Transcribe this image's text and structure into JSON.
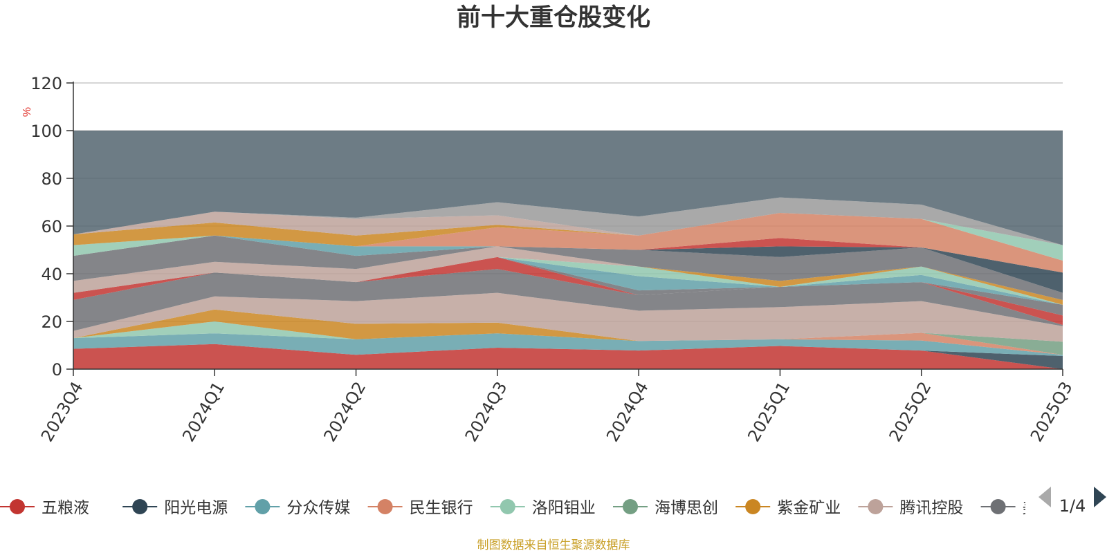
{
  "colors": {
    "axis": "#333333",
    "grid": "#c8c8c8",
    "unit": "#e0312a",
    "source": "#c9a028",
    "pager_active": "#2f4554",
    "pager_inactive": "#aaaaaa"
  },
  "legend": {
    "page_indicator": "1/4",
    "prev_icon": "triangle-left-icon",
    "next_icon": "triangle-right-icon"
  },
  "source_note": "制图数据来自恒生聚源数据库",
  "chart_data": {
    "type": "area",
    "stacked": true,
    "title": "前十大重仓股变化",
    "ylabel": "%",
    "xlabel": "",
    "ylim": [
      0,
      120
    ],
    "yticks": [
      0,
      20,
      40,
      60,
      80,
      100,
      120
    ],
    "grid": true,
    "legend_position": "bottom",
    "categories": [
      "2023Q4",
      "2024Q1",
      "2024Q2",
      "2024Q3",
      "2024Q4",
      "2025Q1",
      "2025Q2",
      "2025Q3"
    ],
    "series": [
      {
        "name": "五粮液",
        "color": "#c23531",
        "values": [
          8.5,
          10.5,
          6.0,
          9.0,
          7.8,
          9.7,
          7.8,
          0
        ]
      },
      {
        "name": "阳光电源",
        "color": "#2f4554",
        "values": [
          0,
          0,
          0,
          0,
          0,
          0,
          0,
          5.5
        ]
      },
      {
        "name": "分众传媒",
        "color": "#61a0a8",
        "values": [
          4.5,
          4.5,
          6.5,
          6.0,
          4.0,
          2.8,
          4.2,
          0.5
        ]
      },
      {
        "name": "民生银行",
        "color": "#d48265",
        "values": [
          0,
          0,
          0,
          0,
          0,
          0,
          3.2,
          0
        ]
      },
      {
        "name": "洛阳钼业",
        "color": "#91c7ae",
        "values": [
          0,
          5.0,
          0,
          0,
          0,
          0,
          0,
          0
        ]
      },
      {
        "name": "海博思创",
        "color": "#749f83",
        "values": [
          0,
          0,
          0,
          0,
          0,
          0,
          0,
          5.5
        ]
      },
      {
        "name": "紫金矿业",
        "color": "#ca8622",
        "values": [
          0,
          5.0,
          6.5,
          4.5,
          0,
          0,
          0,
          0
        ]
      },
      {
        "name": "腾讯控股",
        "color": "#bda29a",
        "values": [
          3.0,
          5.5,
          9.5,
          12.5,
          12.5,
          13.5,
          13.0,
          6.5
        ]
      }
    ],
    "visible_stack_boundaries": [
      [
        8.5,
        10.5,
        6.0,
        9.0,
        7.8,
        9.7,
        7.8,
        0
      ],
      [
        8.5,
        10.5,
        6.0,
        9.0,
        7.8,
        9.7,
        7.8,
        5.5
      ],
      [
        13.0,
        15.0,
        12.5,
        15.0,
        11.8,
        12.5,
        12.0,
        6.0
      ],
      [
        13.0,
        15.0,
        12.5,
        15.0,
        11.8,
        12.5,
        15.2,
        6.0
      ],
      [
        13.0,
        20.0,
        12.5,
        15.0,
        11.8,
        12.5,
        15.2,
        6.0
      ],
      [
        13.0,
        20.0,
        12.5,
        15.0,
        11.8,
        12.5,
        15.2,
        11.5
      ],
      [
        13.0,
        25.0,
        19.0,
        19.5,
        11.8,
        12.5,
        15.2,
        11.5
      ],
      [
        16.0,
        30.5,
        28.5,
        32.0,
        24.5,
        26.0,
        28.5,
        18.0
      ],
      [
        29.0,
        40.5,
        36.5,
        42.0,
        31.0,
        34.5,
        36.5,
        18.5
      ],
      [
        32.0,
        40.5,
        36.5,
        47.0,
        31.0,
        34.5,
        36.5,
        22.5
      ],
      [
        32.0,
        40.5,
        36.5,
        47.0,
        33.0,
        34.5,
        36.5,
        27.0
      ],
      [
        32.0,
        40.5,
        36.5,
        47.0,
        39.0,
        34.5,
        39.5,
        27.0
      ],
      [
        32.0,
        40.5,
        36.5,
        47.0,
        43.0,
        34.5,
        43.0,
        27.0
      ],
      [
        32.0,
        40.5,
        36.5,
        47.0,
        43.0,
        37.0,
        43.0,
        29.0
      ],
      [
        37.0,
        45.0,
        42.0,
        51.5,
        43.0,
        37.0,
        43.0,
        29.0
      ],
      [
        47.5,
        56.0,
        47.5,
        51.5,
        50.0,
        47.0,
        51.0,
        32.0
      ],
      [
        47.5,
        56.0,
        47.5,
        51.5,
        50.0,
        51.5,
        51.0,
        40.5
      ],
      [
        47.5,
        56.0,
        47.5,
        51.5,
        50.0,
        55.0,
        51.0,
        40.5
      ],
      [
        47.5,
        56.0,
        51.5,
        51.5,
        50.0,
        55.0,
        51.0,
        40.5
      ],
      [
        47.5,
        56.0,
        51.5,
        59.5,
        56.0,
        65.5,
        63.0,
        45.5
      ],
      [
        52.0,
        56.0,
        51.5,
        59.5,
        56.0,
        65.5,
        63.0,
        52.0
      ],
      [
        56.5,
        61.5,
        56.0,
        60.5,
        56.0,
        65.5,
        63.0,
        52.0
      ],
      [
        56.5,
        66.0,
        63.0,
        64.5,
        56.0,
        65.5,
        63.0,
        52.0
      ],
      [
        56.5,
        66.0,
        63.5,
        70.0,
        64.0,
        72.0,
        69.0,
        52.0
      ],
      [
        100,
        100,
        100,
        100,
        100,
        100,
        100,
        100
      ]
    ],
    "visible_band_colors": [
      "#c23531",
      "#2f4554",
      "#61a0a8",
      "#d48265",
      "#91c7ae",
      "#749f83",
      "#ca8622",
      "#bda29a",
      "#6e7074",
      "#c23531",
      "#6e7074",
      "#61a0a8",
      "#91c7ae",
      "#ca8622",
      "#bda29a",
      "#6e7074",
      "#2f4554",
      "#c23531",
      "#61a0a8",
      "#d48265",
      "#91c7ae",
      "#ca8622",
      "#bda29a",
      "#9a9a9a",
      "#546570"
    ],
    "extra_legend_entry": {
      "text": "美的",
      "color": "#6e7074"
    }
  }
}
